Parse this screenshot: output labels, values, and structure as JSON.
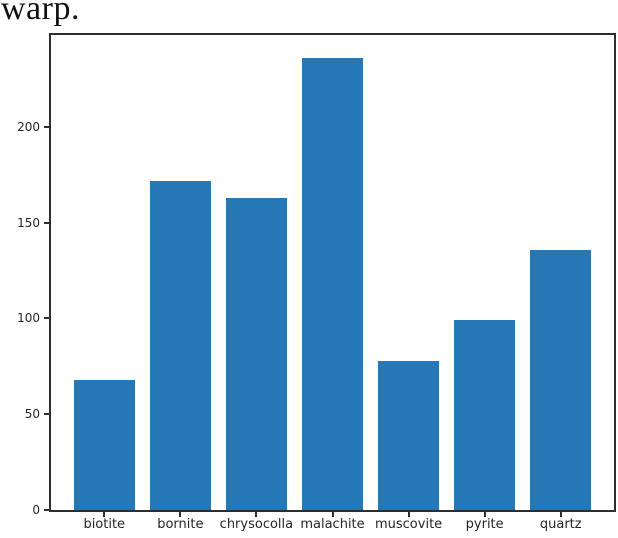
{
  "caption": {
    "text": "warp."
  },
  "chart_data": {
    "type": "bar",
    "title": "",
    "xlabel": "",
    "ylabel": "",
    "categories": [
      "biotite",
      "bornite",
      "chrysocolla",
      "malachite",
      "muscovite",
      "pyrite",
      "quartz"
    ],
    "values": [
      68,
      172,
      163,
      236,
      78,
      99,
      136
    ],
    "yticks": [
      0,
      50,
      100,
      150,
      200
    ],
    "ylim": [
      0,
      248
    ],
    "grid": false,
    "legend": "none",
    "bar_color": "#2578b5",
    "axis_color": "#2e2e2e",
    "tick_label_color": "#262626"
  }
}
